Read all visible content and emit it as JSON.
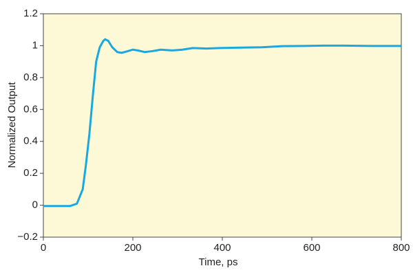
{
  "chart_data": {
    "type": "line",
    "x_label": "Time, ps",
    "y_label": "Normalized Output",
    "x": [
      0,
      60,
      65,
      75,
      88,
      95,
      103,
      111,
      118,
      126,
      134,
      138,
      145,
      154,
      165,
      175,
      188,
      200,
      211,
      226,
      242,
      262,
      288,
      311,
      334,
      365,
      395,
      442,
      488,
      534,
      580,
      626,
      672,
      734,
      800
    ],
    "series": [
      {
        "color": "#1aa8e0",
        "values": [
          -0.005,
          -0.005,
          0.0,
          0.01,
          0.1,
          0.25,
          0.45,
          0.7,
          0.9,
          0.99,
          1.03,
          1.04,
          1.03,
          0.99,
          0.96,
          0.955,
          0.965,
          0.975,
          0.97,
          0.96,
          0.965,
          0.975,
          0.97,
          0.975,
          0.985,
          0.982,
          0.985,
          0.988,
          0.99,
          0.997,
          0.998,
          1.0,
          1.0,
          0.998,
          0.998
        ]
      }
    ],
    "xlim": [
      0,
      800
    ],
    "xticks": [
      0,
      200,
      400,
      600,
      800
    ],
    "ylim": [
      -0.2,
      1.2
    ],
    "yticks": [
      {
        "value": -0.2,
        "label": "−0.2"
      },
      0,
      0.2,
      0.4,
      0.6,
      0.8,
      1,
      1.2
    ],
    "background": "#fdf8d6"
  }
}
